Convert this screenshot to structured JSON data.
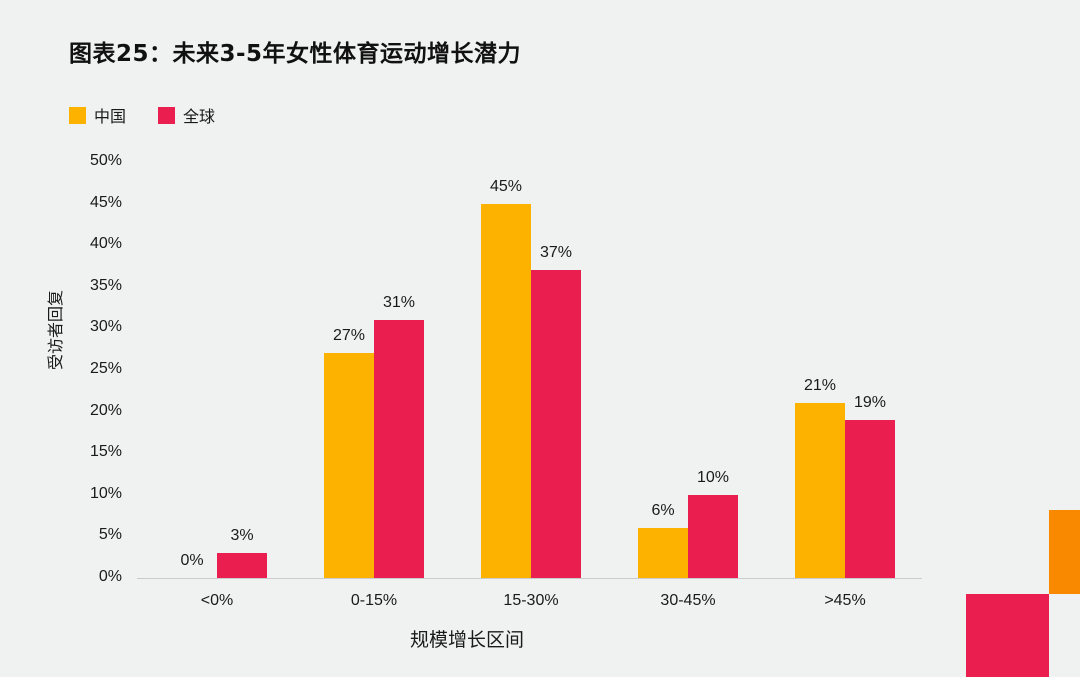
{
  "title": "图表25：未来3-5年女性体育运动增长潜力",
  "legend": [
    {
      "label": "中国",
      "color": "#fdb200"
    },
    {
      "label": "全球",
      "color": "#eb1f4f"
    }
  ],
  "colors": {
    "china": "#fdb200",
    "global": "#eb1f4f",
    "decor_orange": "#f98a00",
    "decor_red": "#eb1f4f",
    "background": "#f0f1f1"
  },
  "axes": {
    "ylabel": "受访者回复",
    "xlabel": "规模增长区间",
    "yticks": [
      "0%",
      "5%",
      "10%",
      "15%",
      "20%",
      "25%",
      "30%",
      "35%",
      "40%",
      "45%",
      "50%"
    ]
  },
  "chart_data": {
    "type": "bar",
    "title": "图表25：未来3-5年女性体育运动增长潜力",
    "categories": [
      "<0%",
      "0-15%",
      "15-30%",
      "30-45%",
      ">45%"
    ],
    "series": [
      {
        "name": "中国",
        "values": [
          0,
          27,
          45,
          6,
          21
        ],
        "labels": [
          "0%",
          "27%",
          "45%",
          "6%",
          "21%"
        ]
      },
      {
        "name": "全球",
        "values": [
          3,
          31,
          37,
          10,
          19
        ],
        "labels": [
          "3%",
          "31%",
          "37%",
          "10%",
          "19%"
        ]
      }
    ],
    "xlabel": "规模增长区间",
    "ylabel": "受访者回复",
    "ylim": [
      0,
      50
    ],
    "yticks": [
      0,
      5,
      10,
      15,
      20,
      25,
      30,
      35,
      40,
      45,
      50
    ],
    "grid": false,
    "legend_position": "top-left"
  }
}
